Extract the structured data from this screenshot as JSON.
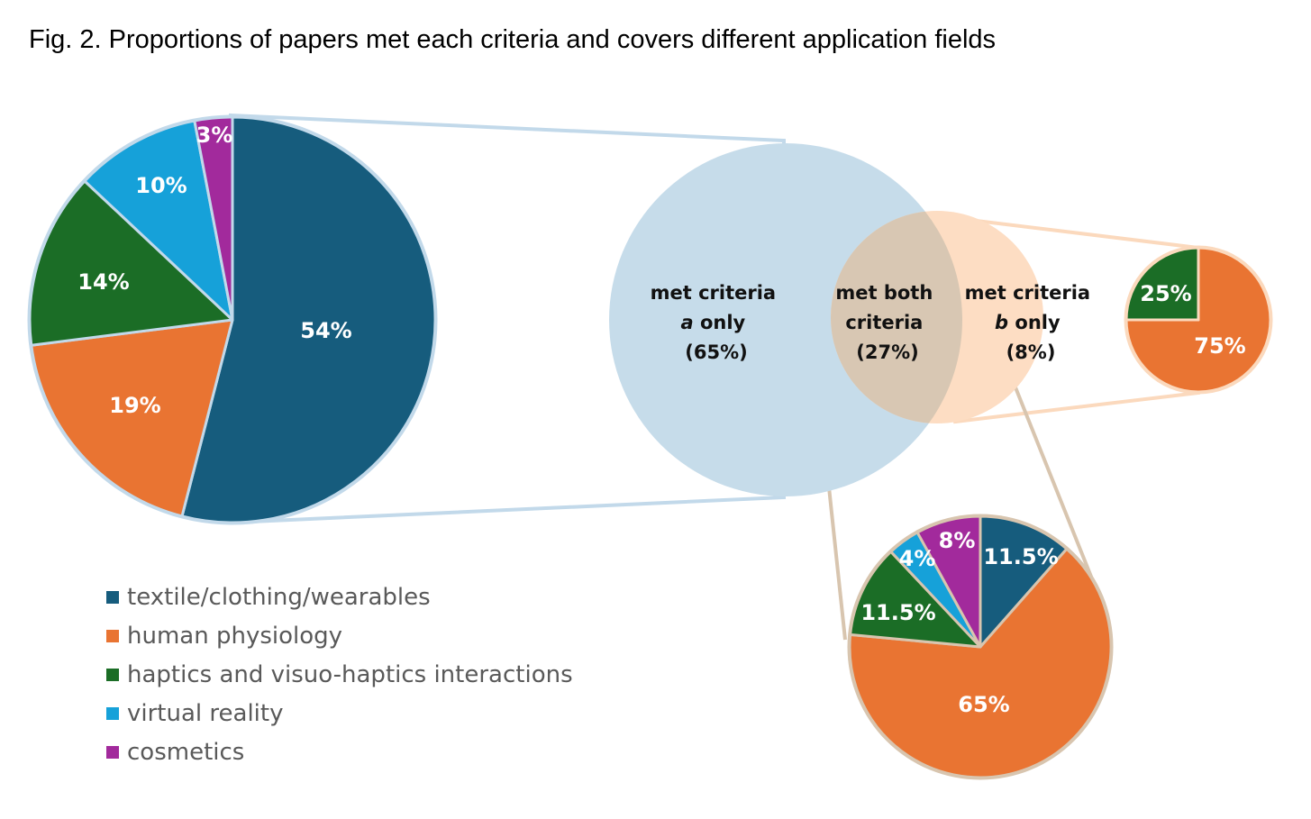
{
  "title": "Fig. 2. Proportions of papers met each criteria and covers different application fields",
  "colors": {
    "textile": "#165C7D",
    "physiology": "#E97432",
    "haptics": "#1B6D26",
    "vr": "#16A1D9",
    "cosmetics": "#A22A9C",
    "circle_a": "#C6DCEA",
    "circle_b": "#FDDDC3",
    "intersection": "#D8C7B3",
    "connector_a": "#C2D9EA",
    "connector_b": "#FBD9BD",
    "connector_both": "#D8C5AF"
  },
  "legend": [
    {
      "label": "textile/clothing/wearables",
      "color_key": "textile"
    },
    {
      "label": "human physiology",
      "color_key": "physiology"
    },
    {
      "label": "haptics and visuo-haptics interactions",
      "color_key": "haptics"
    },
    {
      "label": "virtual reality",
      "color_key": "vr"
    },
    {
      "label": "cosmetics",
      "color_key": "cosmetics"
    }
  ],
  "venn": {
    "a_only": {
      "line1": "met criteria",
      "line2_italic": "a",
      "line2_rest": " only",
      "line3": "(65%)"
    },
    "both": {
      "line1": "met both",
      "line2": "criteria",
      "line3": "(27%)"
    },
    "b_only": {
      "line1": "met criteria",
      "line2_italic": "b",
      "line2_rest": " only",
      "line3": "(8%)"
    }
  },
  "chart_data": [
    {
      "type": "pie",
      "group": "met criteria a only",
      "slices": [
        {
          "category": "textile/clothing/wearables",
          "value": 54,
          "label": "54%"
        },
        {
          "category": "human physiology",
          "value": 19,
          "label": "19%"
        },
        {
          "category": "haptics and visuo-haptics interactions",
          "value": 14,
          "label": "14%"
        },
        {
          "category": "virtual reality",
          "value": 10,
          "label": "10%"
        },
        {
          "category": "cosmetics",
          "value": 3,
          "label": "3%"
        }
      ]
    },
    {
      "type": "pie",
      "group": "met criteria b only",
      "slices": [
        {
          "category": "human physiology",
          "value": 75,
          "label": "75%"
        },
        {
          "category": "haptics and visuo-haptics interactions",
          "value": 25,
          "label": "25%"
        }
      ]
    },
    {
      "type": "pie",
      "group": "met both criteria",
      "slices": [
        {
          "category": "textile/clothing/wearables",
          "value": 11.5,
          "label": "11.5%"
        },
        {
          "category": "human physiology",
          "value": 65,
          "label": "65%"
        },
        {
          "category": "haptics and visuo-haptics interactions",
          "value": 11.5,
          "label": "11.5%"
        },
        {
          "category": "virtual reality",
          "value": 4,
          "label": "4%"
        },
        {
          "category": "cosmetics",
          "value": 8,
          "label": "8%"
        }
      ]
    }
  ]
}
